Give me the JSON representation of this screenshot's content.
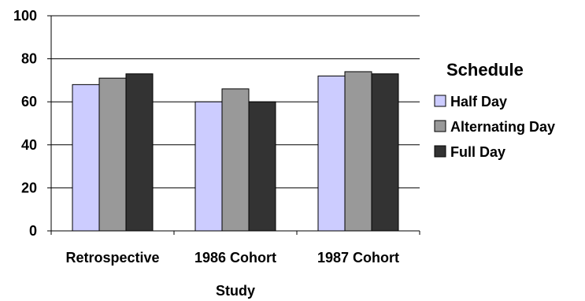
{
  "chart_data": {
    "type": "bar",
    "categories": [
      "Retrospective",
      "1986 Cohort",
      "1987 Cohort"
    ],
    "series": [
      {
        "name": "Half Day",
        "values": [
          68,
          60,
          72
        ],
        "color": "#ccccff"
      },
      {
        "name": "Alternating Day",
        "values": [
          71,
          66,
          74
        ],
        "color": "#999999"
      },
      {
        "name": "Full Day",
        "values": [
          73,
          60,
          73
        ],
        "color": "#333333"
      }
    ],
    "xlabel": "Study",
    "ylabel": "",
    "ylim": [
      0,
      100
    ],
    "yticks": [
      0,
      20,
      40,
      60,
      80,
      100
    ],
    "grid": true,
    "legend_title": "Schedule",
    "legend_position": "right"
  }
}
